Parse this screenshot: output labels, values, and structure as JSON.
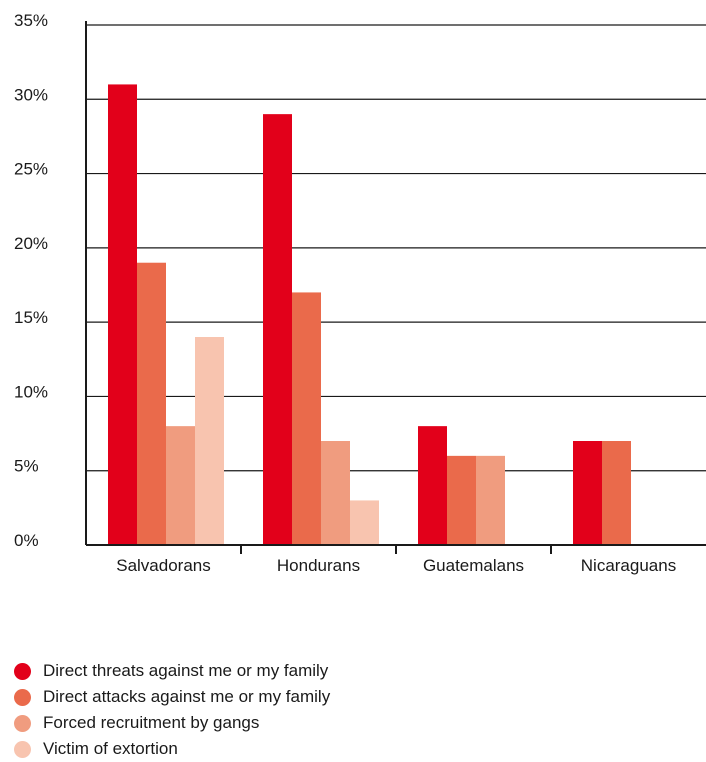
{
  "chart_data": {
    "type": "bar",
    "categories": [
      "Salvadorans",
      "Hondurans",
      "Guatemalans",
      "Nicaraguans"
    ],
    "series": [
      {
        "name": "Direct threats against me or my family",
        "color": "#e2001a",
        "values": [
          31,
          29,
          8,
          7
        ]
      },
      {
        "name": "Direct attacks against me or my family",
        "color": "#ea6a4b",
        "values": [
          19,
          17,
          6,
          7
        ]
      },
      {
        "name": "Forced recruitment by gangs",
        "color": "#f09c7f",
        "values": [
          8,
          7,
          6,
          null
        ]
      },
      {
        "name": "Victim of extortion",
        "color": "#f8c4af",
        "values": [
          14,
          3,
          null,
          null
        ]
      }
    ],
    "yticks": [
      "0%",
      "5%",
      "10%",
      "15%",
      "20%",
      "25%",
      "30%",
      "35%"
    ],
    "ytick_values": [
      0,
      5,
      10,
      15,
      20,
      25,
      30,
      35
    ],
    "ylim": [
      0,
      35
    ],
    "grid": true,
    "legend_position": "bottom-left",
    "title": "",
    "xlabel": "",
    "ylabel": ""
  }
}
